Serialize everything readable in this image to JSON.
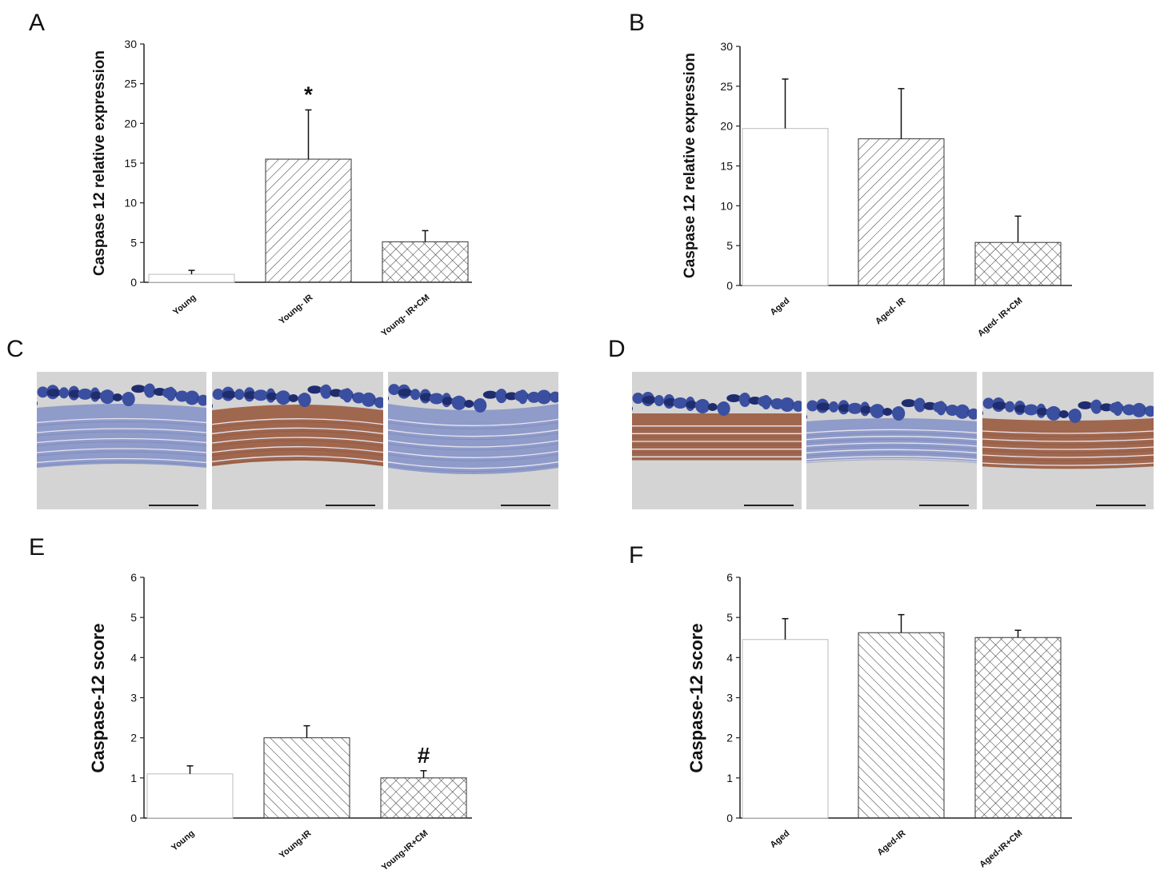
{
  "panels": {
    "A": "A",
    "B": "B",
    "C": "C",
    "D": "D",
    "E": "E",
    "F": "F"
  },
  "chart_data": [
    {
      "id": "A",
      "type": "bar",
      "ylabel": "Caspase 12 relative expression",
      "ylim": [
        0,
        30
      ],
      "yticks": [
        0,
        5,
        10,
        15,
        20,
        25,
        30
      ],
      "categories": [
        "Young",
        "Young- IR",
        "Young- IR+CM"
      ],
      "values": [
        1.0,
        15.5,
        5.1
      ],
      "errors": [
        0.5,
        6.2,
        1.4
      ],
      "annotations": [
        "",
        "*",
        ""
      ],
      "patterns": [
        "none",
        "hatch-fwd",
        "crosshatch"
      ]
    },
    {
      "id": "B",
      "type": "bar",
      "ylabel": "Caspase 12 relative expression",
      "ylim": [
        0,
        30
      ],
      "yticks": [
        0,
        5,
        10,
        15,
        20,
        25,
        30
      ],
      "categories": [
        "Aged",
        "Aged- IR",
        "Aged- IR+CM"
      ],
      "values": [
        19.7,
        18.4,
        5.4
      ],
      "errors": [
        6.2,
        6.3,
        3.3
      ],
      "annotations": [
        "",
        "",
        ""
      ],
      "patterns": [
        "none",
        "hatch-fwd",
        "crosshatch"
      ]
    },
    {
      "id": "E",
      "type": "bar",
      "ylabel": "Caspase-12 score",
      "ylim": [
        0,
        6
      ],
      "yticks": [
        0,
        1,
        2,
        3,
        4,
        5,
        6
      ],
      "categories": [
        "Young",
        "Young-IR",
        "Young-IR+CM"
      ],
      "values": [
        1.1,
        2.0,
        1.0
      ],
      "errors": [
        0.2,
        0.3,
        0.18
      ],
      "annotations": [
        "",
        "",
        "#"
      ],
      "patterns": [
        "none",
        "hatch-back",
        "crosshatch"
      ]
    },
    {
      "id": "F",
      "type": "bar",
      "ylabel": "Caspase-12 score",
      "ylim": [
        0,
        6
      ],
      "yticks": [
        0,
        1,
        2,
        3,
        4,
        5,
        6
      ],
      "categories": [
        "Aged",
        "Aged-IR",
        "Aged-IR+CM"
      ],
      "values": [
        4.45,
        4.62,
        4.5
      ],
      "errors": [
        0.52,
        0.45,
        0.18
      ],
      "annotations": [
        "",
        "",
        ""
      ],
      "patterns": [
        "none",
        "hatch-back",
        "crosshatch"
      ]
    }
  ],
  "micrographs": {
    "C": [
      {
        "tone": "blue"
      },
      {
        "tone": "brown"
      },
      {
        "tone": "blue"
      }
    ],
    "D": [
      {
        "tone": "brown"
      },
      {
        "tone": "blue"
      },
      {
        "tone": "brown"
      }
    ]
  }
}
